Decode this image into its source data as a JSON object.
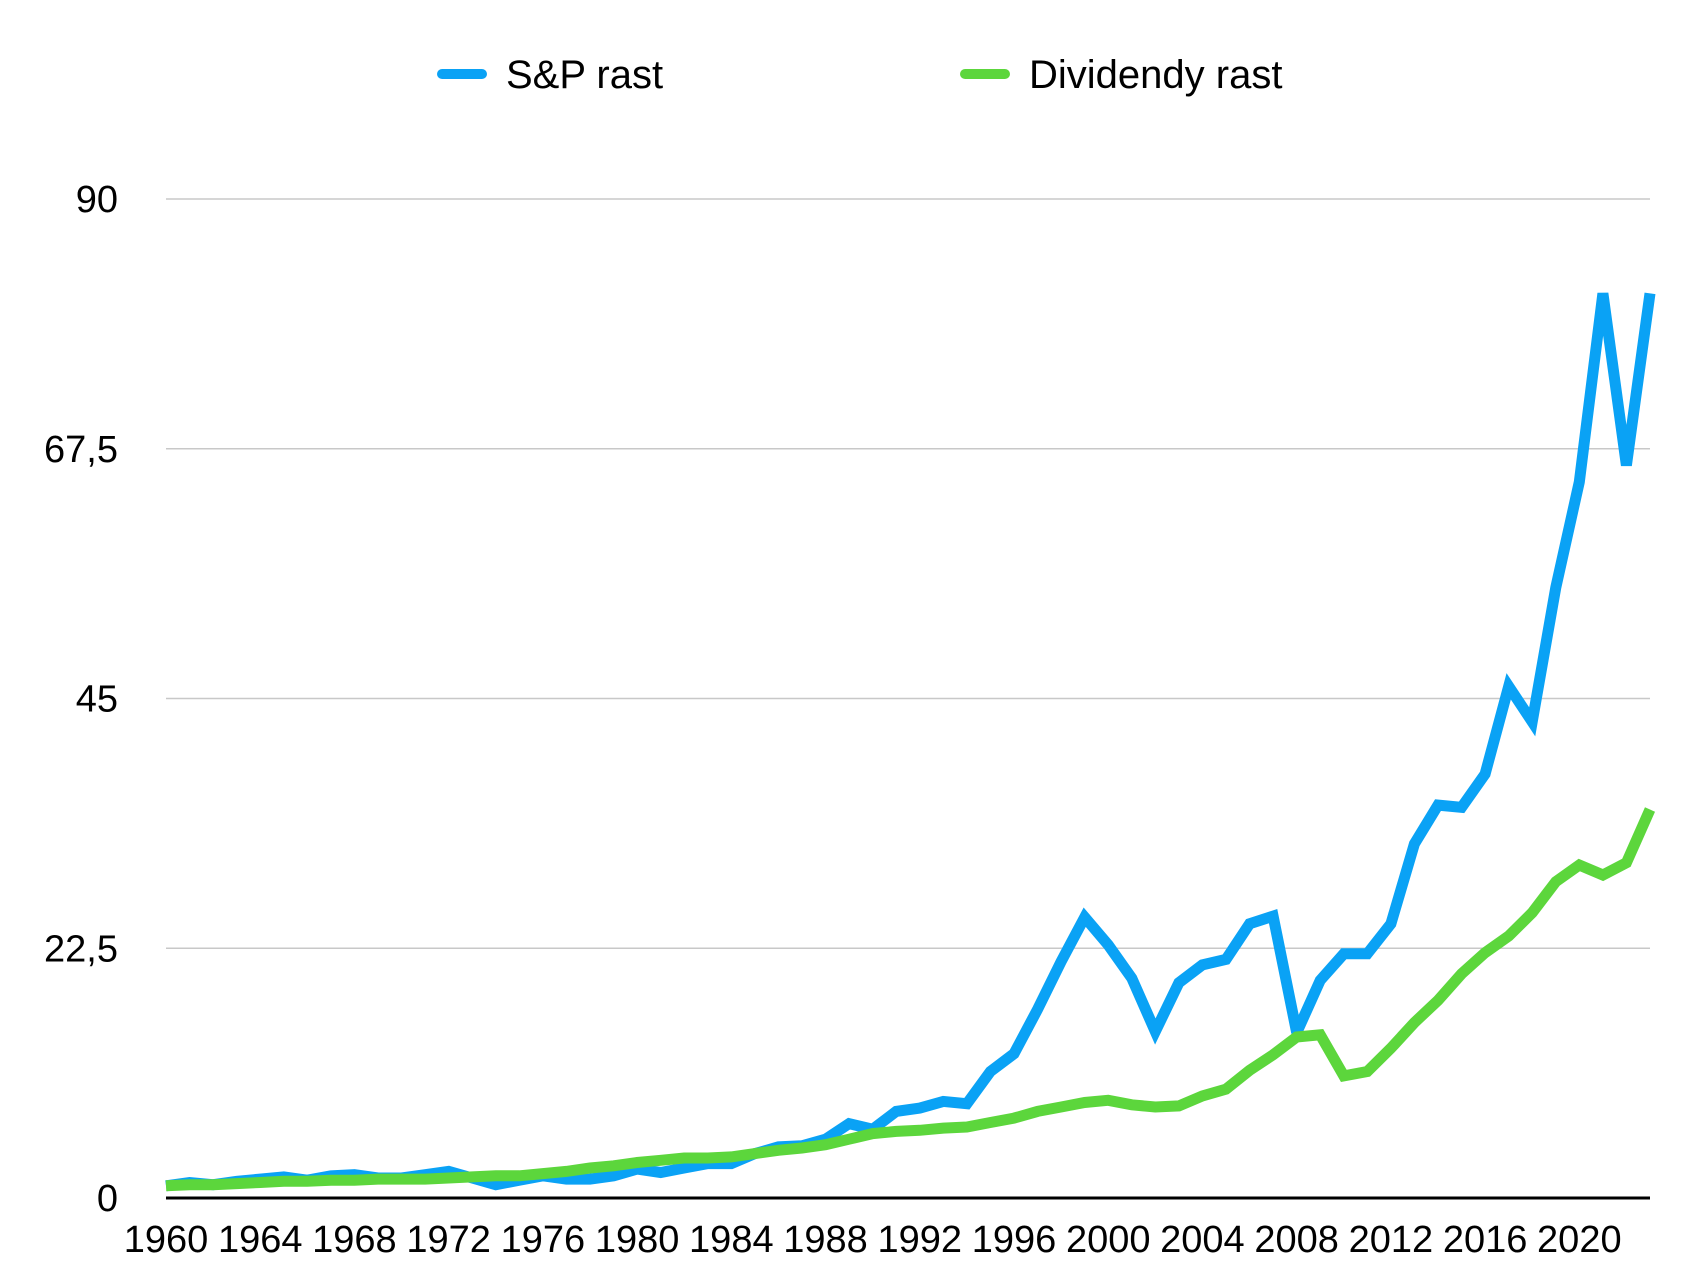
{
  "chart_data": {
    "type": "line",
    "title": "",
    "xlabel": "",
    "ylabel": "",
    "x": [
      1960,
      1961,
      1962,
      1963,
      1964,
      1965,
      1966,
      1967,
      1968,
      1969,
      1970,
      1971,
      1972,
      1973,
      1974,
      1975,
      1976,
      1977,
      1978,
      1979,
      1980,
      1981,
      1982,
      1983,
      1984,
      1985,
      1986,
      1987,
      1988,
      1989,
      1990,
      1991,
      1992,
      1993,
      1994,
      1995,
      1996,
      1997,
      1998,
      1999,
      2000,
      2001,
      2002,
      2003,
      2004,
      2005,
      2006,
      2007,
      2008,
      2009,
      2010,
      2011,
      2012,
      2013,
      2014,
      2015,
      2016,
      2017,
      2018,
      2019,
      2020,
      2021,
      2022,
      2023
    ],
    "x_ticks": [
      1960,
      1964,
      1968,
      1972,
      1976,
      1980,
      1984,
      1988,
      1992,
      1996,
      2000,
      2004,
      2008,
      2012,
      2016,
      2020
    ],
    "y_ticks": [
      0,
      22.5,
      45,
      67.5,
      90
    ],
    "y_tick_labels": [
      "0",
      "22,5",
      "45",
      "67,5",
      "90"
    ],
    "ylim": [
      0,
      90
    ],
    "grid": true,
    "legend_position": "top",
    "series": [
      {
        "name": "S&P rast",
        "color": "#0aa2f5",
        "values": [
          1.1,
          1.4,
          1.2,
          1.5,
          1.7,
          1.9,
          1.6,
          2.0,
          2.1,
          1.8,
          1.8,
          2.1,
          2.4,
          1.8,
          1.2,
          1.6,
          2.0,
          1.7,
          1.7,
          2.0,
          2.6,
          2.3,
          2.7,
          3.1,
          3.1,
          4.0,
          4.6,
          4.7,
          5.3,
          6.7,
          6.2,
          7.8,
          8.1,
          8.7,
          8.5,
          11.4,
          13.0,
          17.0,
          21.3,
          25.3,
          22.8,
          19.8,
          15.0,
          19.4,
          21.0,
          21.5,
          24.7,
          25.4,
          14.9,
          19.6,
          22.0,
          22.0,
          24.7,
          31.9,
          35.4,
          35.2,
          38.2,
          46.1,
          42.9,
          55.0,
          64.5,
          81.5,
          66.0,
          81.5
        ]
      },
      {
        "name": "Dividendy rast",
        "color": "#5cd63c",
        "values": [
          1.1,
          1.2,
          1.2,
          1.3,
          1.4,
          1.5,
          1.5,
          1.6,
          1.6,
          1.7,
          1.7,
          1.7,
          1.8,
          1.9,
          2.0,
          2.0,
          2.2,
          2.4,
          2.7,
          2.9,
          3.2,
          3.4,
          3.6,
          3.6,
          3.7,
          4.0,
          4.3,
          4.5,
          4.8,
          5.3,
          5.8,
          6.0,
          6.1,
          6.3,
          6.4,
          6.8,
          7.2,
          7.8,
          8.2,
          8.6,
          8.8,
          8.4,
          8.2,
          8.3,
          9.2,
          9.8,
          11.5,
          12.9,
          14.5,
          14.7,
          11.0,
          11.4,
          13.5,
          15.8,
          17.8,
          20.2,
          22.1,
          23.6,
          25.7,
          28.5,
          30.0,
          29.1,
          30.2,
          35.0
        ]
      }
    ]
  }
}
